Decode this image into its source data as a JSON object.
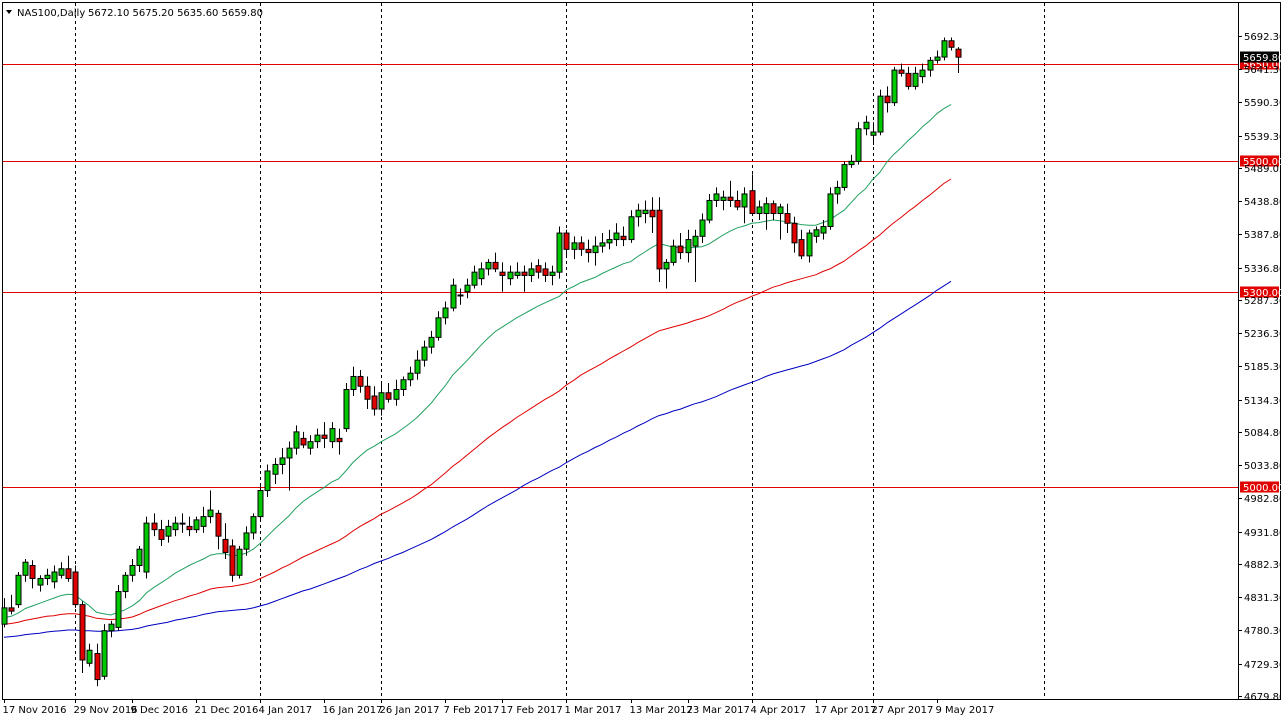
{
  "header": {
    "symbol": "NAS100,Daily",
    "ohlc": "5672.10 5675.20 5635.60 5659.80"
  },
  "current_price_label": "5659.80",
  "colors": {
    "bull": "#00c800",
    "bear": "#e00000",
    "level": "#e00000",
    "ema20": "#20a060",
    "ema50": "#e00000",
    "ema100": "#0000c0"
  },
  "chart_data": {
    "type": "candlestick",
    "ylim": [
      4679.8,
      5692.3
    ],
    "y_ticks": [
      "5692.30",
      "5641.30",
      "5590.30",
      "5539.30",
      "5489.05",
      "5438.80",
      "5387.80",
      "5336.80",
      "5287.30",
      "5236.30",
      "5185.30",
      "5134.30",
      "5084.80",
      "5033.80",
      "4982.80",
      "4931.80",
      "4882.30",
      "4831.30",
      "4780.30",
      "4729.30",
      "4679.80"
    ],
    "x_labels": [
      "17 Nov 2016",
      "29 Nov 2016",
      "9 Dec 2016",
      "21 Dec 2016",
      "4 Jan 2017",
      "16 Jan 2017",
      "26 Jan 2017",
      "7 Feb 2017",
      "17 Feb 2017",
      "1 Mar 2017",
      "13 Mar 2017",
      "23 Mar 2017",
      "4 Apr 2017",
      "17 Apr 2017",
      "27 Apr 2017",
      "9 May 2017"
    ],
    "x_label_bars": [
      0,
      10,
      18,
      27,
      36,
      45,
      53,
      62,
      70,
      79,
      88,
      96,
      105,
      114,
      122,
      131
    ],
    "separator_bars": [
      10,
      36,
      53,
      79,
      105,
      122,
      146
    ],
    "levels": [
      {
        "value": 5650.0,
        "label": "5650.00"
      },
      {
        "value": 5500.0,
        "label": "5500.00"
      },
      {
        "value": 5300.0,
        "label": "5300.00"
      },
      {
        "value": 5000.0,
        "label": "5000.00"
      }
    ],
    "candles": [
      [
        4790,
        4830,
        4785,
        4815
      ],
      [
        4815,
        4835,
        4805,
        4810
      ],
      [
        4820,
        4870,
        4815,
        4865
      ],
      [
        4865,
        4890,
        4855,
        4885
      ],
      [
        4880,
        4888,
        4845,
        4860
      ],
      [
        4850,
        4865,
        4840,
        4860
      ],
      [
        4860,
        4875,
        4850,
        4865
      ],
      [
        4855,
        4880,
        4845,
        4870
      ],
      [
        4865,
        4885,
        4860,
        4875
      ],
      [
        4875,
        4895,
        4855,
        4860
      ],
      [
        4870,
        4880,
        4815,
        4820
      ],
      [
        4820,
        4825,
        4715,
        4735
      ],
      [
        4730,
        4760,
        4725,
        4750
      ],
      [
        4745,
        4760,
        4695,
        4705
      ],
      [
        4710,
        4790,
        4705,
        4780
      ],
      [
        4780,
        4795,
        4770,
        4790
      ],
      [
        4785,
        4850,
        4780,
        4840
      ],
      [
        4840,
        4870,
        4830,
        4865
      ],
      [
        4865,
        4890,
        4855,
        4880
      ],
      [
        4880,
        4910,
        4870,
        4905
      ],
      [
        4870,
        4955,
        4860,
        4945
      ],
      [
        4945,
        4960,
        4925,
        4935
      ],
      [
        4935,
        4950,
        4910,
        4920
      ],
      [
        4925,
        4950,
        4915,
        4940
      ],
      [
        4935,
        4955,
        4925,
        4945
      ],
      [
        4945,
        4960,
        4930,
        4945
      ],
      [
        4940,
        4955,
        4925,
        4935
      ],
      [
        4935,
        4955,
        4930,
        4950
      ],
      [
        4940,
        4970,
        4930,
        4955
      ],
      [
        4955,
        4995,
        4945,
        4965
      ],
      [
        4960,
        4965,
        4905,
        4925
      ],
      [
        4920,
        4945,
        4890,
        4900
      ],
      [
        4910,
        4920,
        4855,
        4865
      ],
      [
        4865,
        4910,
        4860,
        4905
      ],
      [
        4905,
        4940,
        4895,
        4930
      ],
      [
        4930,
        4960,
        4920,
        4955
      ],
      [
        4955,
        5005,
        4950,
        4995
      ],
      [
        4995,
        5035,
        4985,
        5025
      ],
      [
        5020,
        5045,
        5005,
        5035
      ],
      [
        5035,
        5060,
        5020,
        5045
      ],
      [
        5045,
        5070,
        4995,
        5060
      ],
      [
        5060,
        5095,
        5050,
        5085
      ],
      [
        5075,
        5085,
        5060,
        5065
      ],
      [
        5060,
        5080,
        5050,
        5070
      ],
      [
        5070,
        5090,
        5060,
        5080
      ],
      [
        5080,
        5100,
        5060,
        5075
      ],
      [
        5070,
        5100,
        5060,
        5090
      ],
      [
        5075,
        5090,
        5050,
        5070
      ],
      [
        5090,
        5160,
        5085,
        5150
      ],
      [
        5150,
        5185,
        5140,
        5170
      ],
      [
        5170,
        5180,
        5145,
        5155
      ],
      [
        5155,
        5170,
        5120,
        5135
      ],
      [
        5140,
        5155,
        5110,
        5120
      ],
      [
        5120,
        5160,
        5110,
        5145
      ],
      [
        5145,
        5160,
        5130,
        5135
      ],
      [
        5135,
        5165,
        5125,
        5150
      ],
      [
        5150,
        5170,
        5140,
        5165
      ],
      [
        5165,
        5185,
        5155,
        5175
      ],
      [
        5175,
        5210,
        5165,
        5195
      ],
      [
        5195,
        5225,
        5185,
        5215
      ],
      [
        5215,
        5240,
        5205,
        5230
      ],
      [
        5230,
        5270,
        5225,
        5260
      ],
      [
        5260,
        5285,
        5250,
        5275
      ],
      [
        5275,
        5320,
        5270,
        5310
      ],
      [
        5295,
        5305,
        5280,
        5295
      ],
      [
        5300,
        5320,
        5290,
        5310
      ],
      [
        5310,
        5340,
        5305,
        5330
      ],
      [
        5320,
        5345,
        5310,
        5335
      ],
      [
        5335,
        5350,
        5325,
        5345
      ],
      [
        5345,
        5360,
        5330,
        5335
      ],
      [
        5330,
        5345,
        5300,
        5325
      ],
      [
        5320,
        5340,
        5310,
        5330
      ],
      [
        5325,
        5345,
        5320,
        5330
      ],
      [
        5330,
        5340,
        5300,
        5325
      ],
      [
        5325,
        5345,
        5315,
        5335
      ],
      [
        5340,
        5350,
        5320,
        5330
      ],
      [
        5335,
        5345,
        5315,
        5325
      ],
      [
        5325,
        5340,
        5310,
        5330
      ],
      [
        5330,
        5400,
        5320,
        5390
      ],
      [
        5390,
        5395,
        5355,
        5365
      ],
      [
        5365,
        5385,
        5350,
        5375
      ],
      [
        5375,
        5385,
        5355,
        5365
      ],
      [
        5365,
        5380,
        5345,
        5360
      ],
      [
        5360,
        5385,
        5340,
        5370
      ],
      [
        5370,
        5390,
        5360,
        5375
      ],
      [
        5375,
        5395,
        5365,
        5380
      ],
      [
        5380,
        5405,
        5370,
        5390
      ],
      [
        5385,
        5400,
        5370,
        5380
      ],
      [
        5380,
        5425,
        5375,
        5415
      ],
      [
        5415,
        5435,
        5400,
        5425
      ],
      [
        5420,
        5440,
        5405,
        5425
      ],
      [
        5425,
        5445,
        5390,
        5415
      ],
      [
        5425,
        5445,
        5315,
        5335
      ],
      [
        5335,
        5350,
        5305,
        5345
      ],
      [
        5345,
        5380,
        5340,
        5370
      ],
      [
        5370,
        5390,
        5350,
        5360
      ],
      [
        5360,
        5395,
        5345,
        5380
      ],
      [
        5370,
        5395,
        5315,
        5385
      ],
      [
        5385,
        5420,
        5375,
        5410
      ],
      [
        5410,
        5450,
        5405,
        5440
      ],
      [
        5440,
        5460,
        5430,
        5450
      ],
      [
        5440,
        5455,
        5425,
        5445
      ],
      [
        5445,
        5470,
        5430,
        5440
      ],
      [
        5440,
        5455,
        5425,
        5430
      ],
      [
        5430,
        5460,
        5405,
        5450
      ],
      [
        5455,
        5480,
        5420,
        5420
      ],
      [
        5420,
        5440,
        5410,
        5430
      ],
      [
        5420,
        5445,
        5395,
        5435
      ],
      [
        5435,
        5440,
        5410,
        5420
      ],
      [
        5420,
        5435,
        5380,
        5430
      ],
      [
        5420,
        5435,
        5390,
        5405
      ],
      [
        5405,
        5415,
        5360,
        5375
      ],
      [
        5380,
        5395,
        5350,
        5355
      ],
      [
        5355,
        5395,
        5345,
        5390
      ],
      [
        5385,
        5400,
        5375,
        5395
      ],
      [
        5390,
        5410,
        5380,
        5400
      ],
      [
        5400,
        5460,
        5395,
        5450
      ],
      [
        5450,
        5470,
        5435,
        5460
      ],
      [
        5460,
        5500,
        5455,
        5495
      ],
      [
        5495,
        5510,
        5490,
        5500
      ],
      [
        5500,
        5560,
        5495,
        5550
      ],
      [
        5550,
        5570,
        5540,
        5560
      ],
      [
        5540,
        5560,
        5525,
        5545
      ],
      [
        5545,
        5610,
        5540,
        5600
      ],
      [
        5600,
        5615,
        5575,
        5590
      ],
      [
        5590,
        5645,
        5585,
        5640
      ],
      [
        5640,
        5650,
        5630,
        5635
      ],
      [
        5635,
        5645,
        5610,
        5615
      ],
      [
        5615,
        5645,
        5610,
        5635
      ],
      [
        5630,
        5650,
        5620,
        5640
      ],
      [
        5640,
        5660,
        5630,
        5655
      ],
      [
        5655,
        5670,
        5650,
        5660
      ],
      [
        5660,
        5690,
        5655,
        5685
      ],
      [
        5685,
        5690,
        5670,
        5675
      ],
      [
        5672.1,
        5675.2,
        5635.6,
        5659.8
      ]
    ],
    "ema_series": [
      {
        "period": 20,
        "values": [
          4800,
          4802,
          4807,
          4814,
          4818,
          4822,
          4826,
          4830,
          4834,
          4836,
          4835,
          4826,
          4818,
          4808,
          4806,
          4804,
          4808,
          4812,
          4818,
          4826,
          4838,
          4846,
          4853,
          4860,
          4868,
          4874,
          4880,
          4885,
          4890,
          4896,
          4898,
          4898,
          4895,
          4896,
          4899,
          4905,
          4914,
          4925,
          4936,
          4946,
          4956,
          4968,
          4978,
          4986,
          4993,
          5000,
          5008,
          5013,
          5025,
          5038,
          5048,
          5057,
          5063,
          5070,
          5076,
          5082,
          5090,
          5098,
          5107,
          5118,
          5129,
          5143,
          5156,
          5172,
          5183,
          5194,
          5206,
          5218,
          5229,
          5239,
          5246,
          5253,
          5260,
          5266,
          5272,
          5278,
          5283,
          5288,
          5293,
          5303,
          5308,
          5314,
          5318,
          5322,
          5328,
          5333,
          5338,
          5343,
          5346,
          5354,
          5361,
          5368,
          5374,
          5371,
          5368,
          5368,
          5367,
          5368,
          5369,
          5373,
          5380,
          5387,
          5393,
          5398,
          5401,
          5405,
          5406,
          5408,
          5410,
          5409,
          5407,
          5405,
          5403,
          5402,
          5402,
          5406,
          5410,
          5418,
          5425,
          5437,
          5449,
          5458,
          5472,
          5483,
          5499,
          5511,
          5521,
          5532,
          5542,
          5553,
          5562,
          5573,
          5581,
          5587
        ]
      },
      {
        "period": 50,
        "values": [
          4790,
          4791,
          4793,
          4796,
          4798,
          4800,
          4802,
          4803,
          4805,
          4806,
          4806,
          4804,
          4802,
          4799,
          4798,
          4797,
          4798,
          4799,
          4801,
          4805,
          4810,
          4814,
          4818,
          4822,
          4826,
          4829,
          4833,
          4836,
          4840,
          4844,
          4846,
          4847,
          4848,
          4850,
          4852,
          4855,
          4860,
          4865,
          4870,
          4876,
          4881,
          4887,
          4893,
          4898,
          4903,
          4908,
          4913,
          4918,
          4925,
          4933,
          4940,
          4946,
          4952,
          4959,
          4964,
          4970,
          4976,
          4982,
          4989,
          4997,
          5004,
          5013,
          5022,
          5032,
          5040,
          5049,
          5058,
          5067,
          5076,
          5084,
          5092,
          5099,
          5107,
          5114,
          5121,
          5128,
          5135,
          5141,
          5148,
          5157,
          5164,
          5172,
          5178,
          5184,
          5190,
          5197,
          5203,
          5209,
          5215,
          5222,
          5228,
          5234,
          5240,
          5243,
          5246,
          5249,
          5252,
          5256,
          5259,
          5263,
          5268,
          5273,
          5279,
          5284,
          5288,
          5293,
          5297,
          5302,
          5307,
          5310,
          5314,
          5317,
          5320,
          5323,
          5326,
          5331,
          5335,
          5341,
          5347,
          5355,
          5363,
          5370,
          5379,
          5387,
          5397,
          5406,
          5414,
          5423,
          5431,
          5440,
          5448,
          5457,
          5466,
          5473
        ]
      },
      {
        "period": 100,
        "values": [
          4770,
          4771,
          4772,
          4774,
          4775,
          4776,
          4778,
          4779,
          4780,
          4781,
          4781,
          4780,
          4780,
          4779,
          4779,
          4779,
          4780,
          4781,
          4782,
          4784,
          4787,
          4789,
          4791,
          4793,
          4796,
          4798,
          4800,
          4802,
          4805,
          4807,
          4809,
          4810,
          4811,
          4812,
          4813,
          4815,
          4818,
          4821,
          4825,
          4829,
          4833,
          4837,
          4841,
          4844,
          4848,
          4852,
          4856,
          4860,
          4864,
          4869,
          4874,
          4878,
          4883,
          4887,
          4891,
          4896,
          4900,
          4905,
          4910,
          4915,
          4920,
          4926,
          4932,
          4939,
          4945,
          4951,
          4958,
          4965,
          4972,
          4978,
          4984,
          4990,
          4996,
          5003,
          5009,
          5014,
          5020,
          5026,
          5031,
          5038,
          5044,
          5050,
          5055,
          5061,
          5066,
          5072,
          5077,
          5083,
          5088,
          5094,
          5099,
          5105,
          5110,
          5113,
          5117,
          5120,
          5124,
          5128,
          5131,
          5135,
          5139,
          5144,
          5149,
          5153,
          5157,
          5161,
          5165,
          5170,
          5174,
          5177,
          5180,
          5183,
          5186,
          5189,
          5193,
          5197,
          5201,
          5206,
          5211,
          5218,
          5224,
          5230,
          5237,
          5244,
          5252,
          5259,
          5266,
          5273,
          5280,
          5287,
          5294,
          5302,
          5309,
          5316
        ]
      }
    ]
  }
}
